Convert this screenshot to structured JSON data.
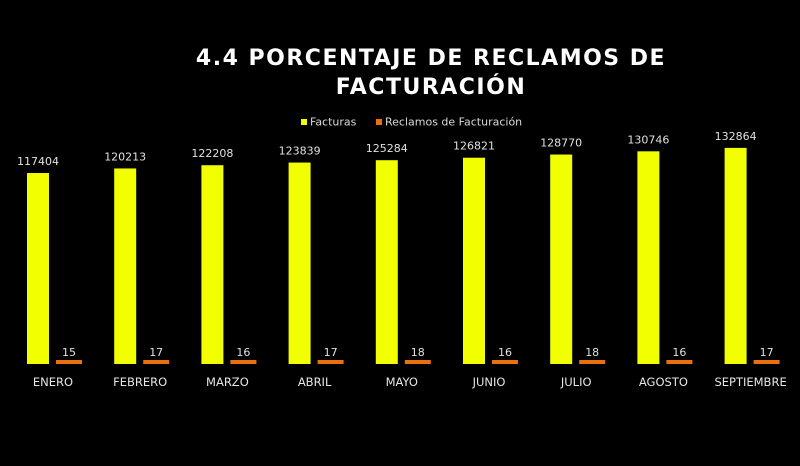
{
  "chart_data": {
    "type": "bar",
    "title_lines": [
      "4.4 PORCENTAJE DE RECLAMOS DE",
      "FACTURACIÓN"
    ],
    "categories": [
      "ENERO",
      "FEBRERO",
      "MARZO",
      "ABRIL",
      "MAYO",
      "JUNIO",
      "JULIO",
      "AGOSTO",
      "SEPTIEMBRE"
    ],
    "series": [
      {
        "name": "Facturas",
        "color": "#f2ff00",
        "values": [
          117404,
          120213,
          122208,
          123839,
          125284,
          126821,
          128770,
          130746,
          132864
        ]
      },
      {
        "name": "Reclamos de Facturación",
        "color": "#e8700e",
        "values": [
          15,
          17,
          16,
          17,
          18,
          16,
          18,
          16,
          17
        ]
      }
    ],
    "ylim": [
      0,
      150000
    ],
    "grid": false,
    "legend_position": "top-center",
    "data_labels": true
  }
}
